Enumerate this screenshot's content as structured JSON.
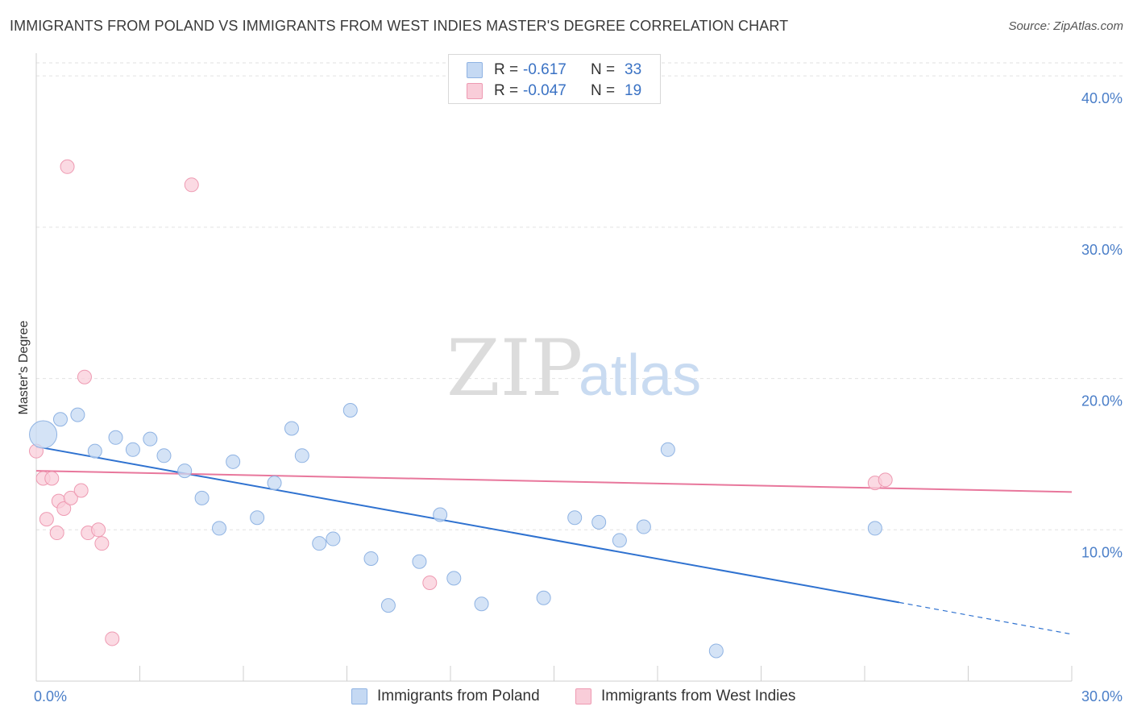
{
  "title": "IMMIGRANTS FROM POLAND VS IMMIGRANTS FROM WEST INDIES MASTER'S DEGREE CORRELATION CHART",
  "source": "Source: ZipAtlas.com",
  "watermark": {
    "zip": "ZIP",
    "atlas": "atlas"
  },
  "legend": {
    "poland": {
      "r_label": "R =",
      "r_value": "-0.617",
      "n_label": "N =",
      "n_value": "33"
    },
    "west_indies": {
      "r_label": "R =",
      "r_value": "-0.047",
      "n_label": "N =",
      "n_value": "19"
    }
  },
  "colors": {
    "poland_fill": "#c5d9f3",
    "poland_stroke": "#8fb3e3",
    "poland_line": "#2f72d0",
    "westindies_fill": "#f9cdd9",
    "westindies_stroke": "#ee9ab2",
    "westindies_line": "#e8779c",
    "tick_text": "#4a7ec8",
    "grid": "#e2e2e2"
  },
  "chart_data": {
    "type": "scatter",
    "title": "IMMIGRANTS FROM POLAND VS IMMIGRANTS FROM WEST INDIES MASTER'S DEGREE CORRELATION CHART",
    "xlabel": "",
    "ylabel": "Master's Degree",
    "xlim": [
      0,
      30
    ],
    "ylim": [
      0,
      41.5
    ],
    "x_tick_labels": [
      "0.0%",
      "30.0%"
    ],
    "y_ticks": [
      10,
      20,
      30,
      40
    ],
    "y_tick_labels": [
      "10.0%",
      "20.0%",
      "30.0%",
      "40.0%"
    ],
    "grid": "horizontal dashed",
    "legend_position": "top-center and bottom",
    "series": [
      {
        "name": "Immigrants from Poland",
        "points": [
          {
            "x": 0.2,
            "y": 16.3,
            "big": true
          },
          {
            "x": 0.7,
            "y": 17.3
          },
          {
            "x": 1.2,
            "y": 17.6
          },
          {
            "x": 1.7,
            "y": 15.2
          },
          {
            "x": 2.3,
            "y": 16.1
          },
          {
            "x": 2.8,
            "y": 15.3
          },
          {
            "x": 3.3,
            "y": 16.0
          },
          {
            "x": 3.7,
            "y": 14.9
          },
          {
            "x": 4.3,
            "y": 13.9
          },
          {
            "x": 4.8,
            "y": 12.1
          },
          {
            "x": 5.3,
            "y": 10.1
          },
          {
            "x": 5.7,
            "y": 14.5
          },
          {
            "x": 6.4,
            "y": 10.8
          },
          {
            "x": 6.9,
            "y": 13.1
          },
          {
            "x": 7.4,
            "y": 16.7
          },
          {
            "x": 7.7,
            "y": 14.9
          },
          {
            "x": 8.2,
            "y": 9.1
          },
          {
            "x": 8.6,
            "y": 9.4
          },
          {
            "x": 9.1,
            "y": 17.9
          },
          {
            "x": 9.7,
            "y": 8.1
          },
          {
            "x": 10.2,
            "y": 5.0
          },
          {
            "x": 11.1,
            "y": 7.9
          },
          {
            "x": 11.7,
            "y": 11.0
          },
          {
            "x": 12.1,
            "y": 6.8
          },
          {
            "x": 12.9,
            "y": 5.1
          },
          {
            "x": 14.7,
            "y": 5.5
          },
          {
            "x": 15.6,
            "y": 10.8
          },
          {
            "x": 16.3,
            "y": 10.5
          },
          {
            "x": 16.9,
            "y": 9.3
          },
          {
            "x": 17.6,
            "y": 10.2
          },
          {
            "x": 18.3,
            "y": 15.3
          },
          {
            "x": 19.7,
            "y": 2.0
          },
          {
            "x": 24.3,
            "y": 10.1
          }
        ],
        "trend": {
          "x": [
            0,
            25.0
          ],
          "y": [
            15.5,
            5.2
          ],
          "dashed_to": {
            "x": 30,
            "y": 3.1
          }
        }
      },
      {
        "name": "Immigrants from West Indies",
        "points": [
          {
            "x": 0.0,
            "y": 15.2
          },
          {
            "x": 0.2,
            "y": 13.4
          },
          {
            "x": 0.3,
            "y": 10.7
          },
          {
            "x": 0.45,
            "y": 13.4
          },
          {
            "x": 0.6,
            "y": 9.8
          },
          {
            "x": 0.65,
            "y": 11.9
          },
          {
            "x": 0.8,
            "y": 11.4
          },
          {
            "x": 0.9,
            "y": 34.0
          },
          {
            "x": 1.0,
            "y": 12.1
          },
          {
            "x": 1.3,
            "y": 12.6
          },
          {
            "x": 1.4,
            "y": 20.1
          },
          {
            "x": 1.5,
            "y": 9.8
          },
          {
            "x": 1.8,
            "y": 10.0
          },
          {
            "x": 1.9,
            "y": 9.1
          },
          {
            "x": 2.2,
            "y": 2.8
          },
          {
            "x": 4.5,
            "y": 32.8
          },
          {
            "x": 11.4,
            "y": 6.5
          },
          {
            "x": 24.3,
            "y": 13.1
          },
          {
            "x": 24.6,
            "y": 13.3
          }
        ],
        "trend": {
          "x": [
            0,
            30
          ],
          "y": [
            13.9,
            12.5
          ]
        }
      }
    ]
  }
}
